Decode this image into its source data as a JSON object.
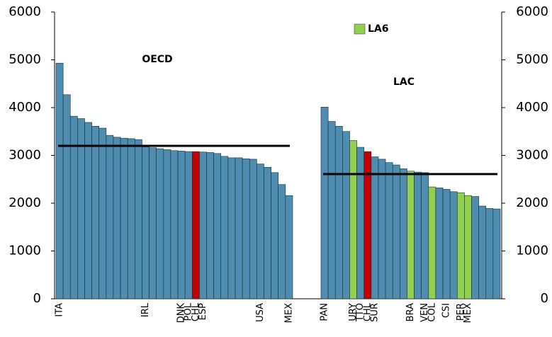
{
  "chart_data": {
    "type": "bar",
    "ylim": [
      0,
      6000
    ],
    "yticks": [
      0,
      1000,
      2000,
      3000,
      4000,
      5000,
      6000
    ],
    "y2lim": [
      0,
      6000
    ],
    "y2ticks": [
      0,
      1000,
      2000,
      3000,
      4000,
      5000,
      6000
    ],
    "legend": {
      "label": "LA6",
      "color": "#92d050"
    },
    "groups": [
      {
        "label": "OECD",
        "average": 3200,
        "categories": [
          "ITA",
          null,
          null,
          null,
          null,
          null,
          null,
          null,
          null,
          null,
          null,
          null,
          "IRL",
          null,
          null,
          null,
          null,
          "DNK",
          "POL",
          "CHL",
          "ESP",
          null,
          null,
          null,
          null,
          null,
          null,
          null,
          "USA",
          null,
          null,
          null,
          "MEX"
        ],
        "values": [
          4930,
          4270,
          3820,
          3770,
          3690,
          3610,
          3570,
          3420,
          3380,
          3360,
          3350,
          3330,
          3180,
          3160,
          3140,
          3120,
          3100,
          3090,
          3080,
          3080,
          3070,
          3060,
          3040,
          2980,
          2950,
          2950,
          2930,
          2920,
          2820,
          2750,
          2640,
          2390,
          2160
        ],
        "colors": [
          "#4f8db0",
          "#4f8db0",
          "#4f8db0",
          "#4f8db0",
          "#4f8db0",
          "#4f8db0",
          "#4f8db0",
          "#4f8db0",
          "#4f8db0",
          "#4f8db0",
          "#4f8db0",
          "#4f8db0",
          "#4f8db0",
          "#4f8db0",
          "#4f8db0",
          "#4f8db0",
          "#4f8db0",
          "#4f8db0",
          "#4f8db0",
          "#c00000",
          "#4f8db0",
          "#4f8db0",
          "#4f8db0",
          "#4f8db0",
          "#4f8db0",
          "#4f8db0",
          "#4f8db0",
          "#4f8db0",
          "#4f8db0",
          "#4f8db0",
          "#4f8db0",
          "#4f8db0",
          "#4f8db0"
        ]
      },
      {
        "label": "LAC",
        "average": 2610,
        "categories": [
          "PAN",
          null,
          null,
          null,
          "URY",
          "TTO",
          "CHL",
          "SUR",
          null,
          null,
          null,
          null,
          "BRA",
          null,
          "VEN",
          "COL",
          null,
          "CSI",
          null,
          "PER",
          "MEX",
          null,
          null,
          null,
          null
        ],
        "values": [
          4010,
          3710,
          3610,
          3500,
          3310,
          3170,
          3080,
          2970,
          2920,
          2850,
          2800,
          2720,
          2670,
          2650,
          2640,
          2340,
          2320,
          2290,
          2240,
          2220,
          2160,
          2140,
          1940,
          1890,
          1880
        ],
        "colors": [
          "#4f8db0",
          "#4f8db0",
          "#4f8db0",
          "#4f8db0",
          "#92d050",
          "#4f8db0",
          "#c00000",
          "#4f8db0",
          "#4f8db0",
          "#4f8db0",
          "#4f8db0",
          "#4f8db0",
          "#92d050",
          "#4f8db0",
          "#4f8db0",
          "#92d050",
          "#4f8db0",
          "#4f8db0",
          "#4f8db0",
          "#92d050",
          "#92d050",
          "#4f8db0",
          "#4f8db0",
          "#4f8db0",
          "#4f8db0"
        ]
      }
    ]
  }
}
